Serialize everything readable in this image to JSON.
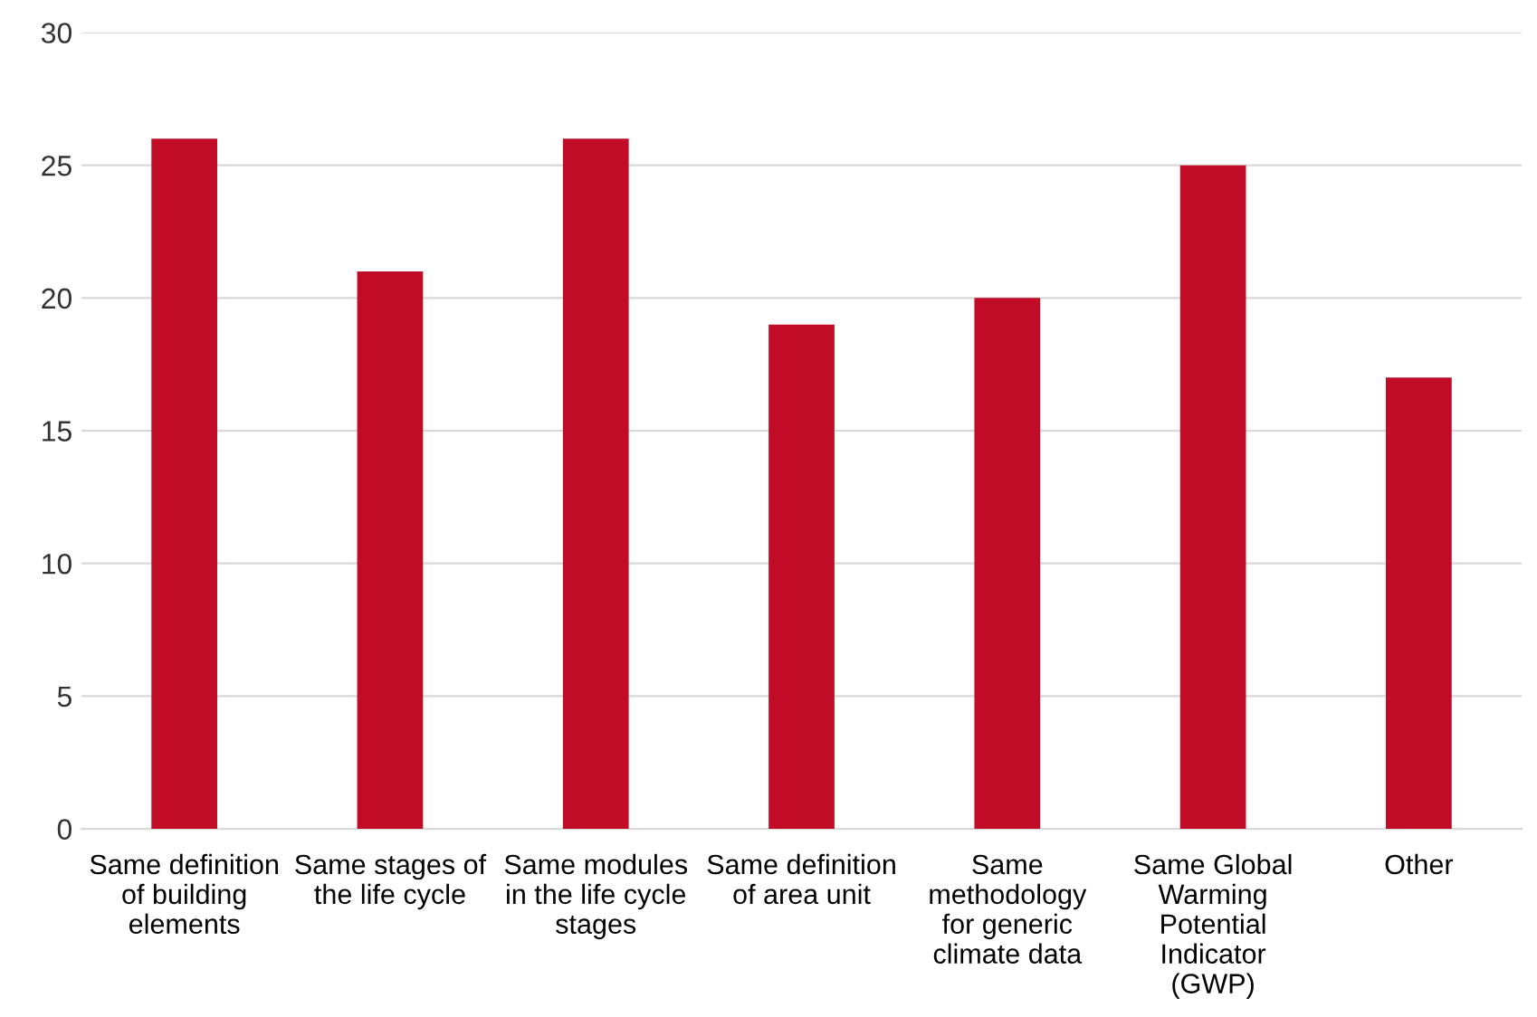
{
  "chart_data": {
    "type": "bar",
    "categories": [
      "Same definition\nof building\nelements",
      "Same stages of\nthe life cycle",
      "Same modules\nin the life cycle\nstages",
      "Same definition\nof area unit",
      "Same\nmethodology\nfor generic\nclimate data",
      "Same Global\nWarming\nPotential\nIndicator\n(GWP)",
      "Other"
    ],
    "values": [
      26,
      21,
      26,
      19,
      20,
      25,
      17
    ],
    "color": "#c00c26",
    "ylim": [
      0,
      30
    ],
    "yticks": [
      0,
      5,
      10,
      15,
      20,
      25,
      30
    ],
    "grid": "y",
    "legend": false
  }
}
